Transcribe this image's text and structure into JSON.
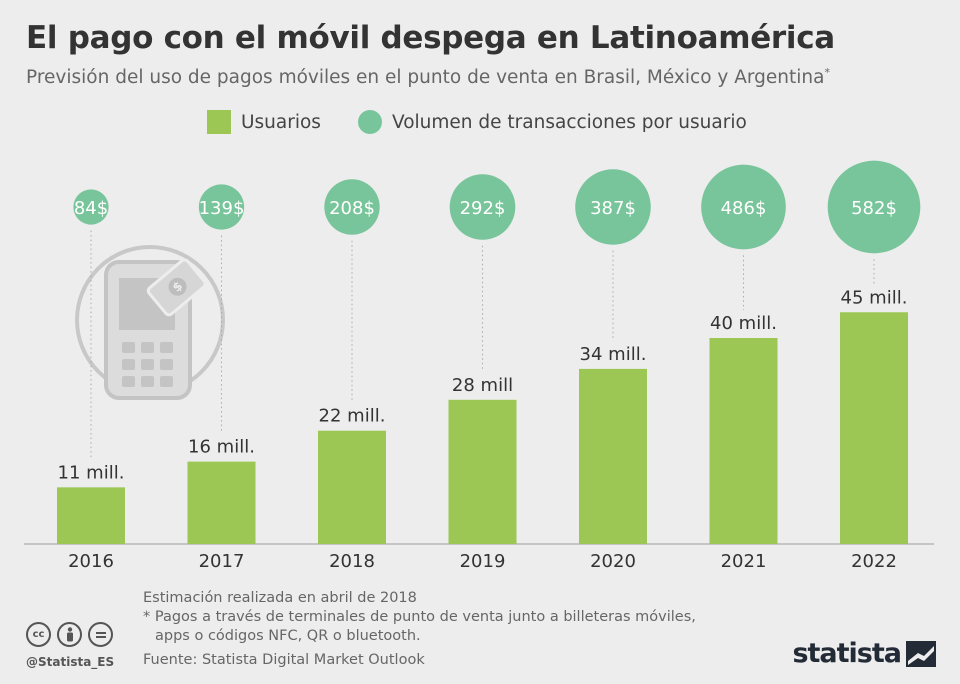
{
  "header": {
    "title": "El pago con el móvil despega en Latinoamérica",
    "subtitle": "Previsión del uso de pagos móviles en el punto de venta en Brasil, México y Argentina",
    "subtitle_mark": "*"
  },
  "legend": {
    "users_label": "Usuarios",
    "volume_label": "Volumen de transacciones por usuario"
  },
  "colors": {
    "bar": "#9dc755",
    "bubble": "#78c59b",
    "background": "#ededed",
    "text": "#333333"
  },
  "chart_data": {
    "type": "bar",
    "categories": [
      "2016",
      "2017",
      "2018",
      "2019",
      "2020",
      "2021",
      "2022"
    ],
    "series": [
      {
        "name": "Usuarios",
        "values": [
          11,
          16,
          22,
          28,
          34,
          40,
          45
        ],
        "labels": [
          "11 mill.",
          "16 mill.",
          "22 mill.",
          "28 mill",
          "34 mill.",
          "40 mill.",
          "45 mill."
        ]
      },
      {
        "name": "Volumen de transacciones por usuario",
        "type": "bubble",
        "values": [
          84,
          139,
          208,
          292,
          387,
          486,
          582
        ],
        "labels": [
          "84$",
          "139$",
          "208$",
          "292$",
          "387$",
          "486$",
          "582$"
        ]
      }
    ],
    "ylim": [
      0,
      60
    ],
    "grid": false,
    "legend_position": "top"
  },
  "footer": {
    "note1": "Estimación realizada en abril de 2018",
    "note2_line1": "* Pagos a través de terminales de punto de venta junto a billeteras móviles,",
    "note2_line2": "apps o códigos NFC, QR o bluetooth.",
    "source": "Fuente: Statista Digital Market Outlook",
    "handle": "@Statista_ES",
    "brand": "statista",
    "cc_icons": [
      "cc-icon",
      "by-icon",
      "nd-icon"
    ]
  }
}
